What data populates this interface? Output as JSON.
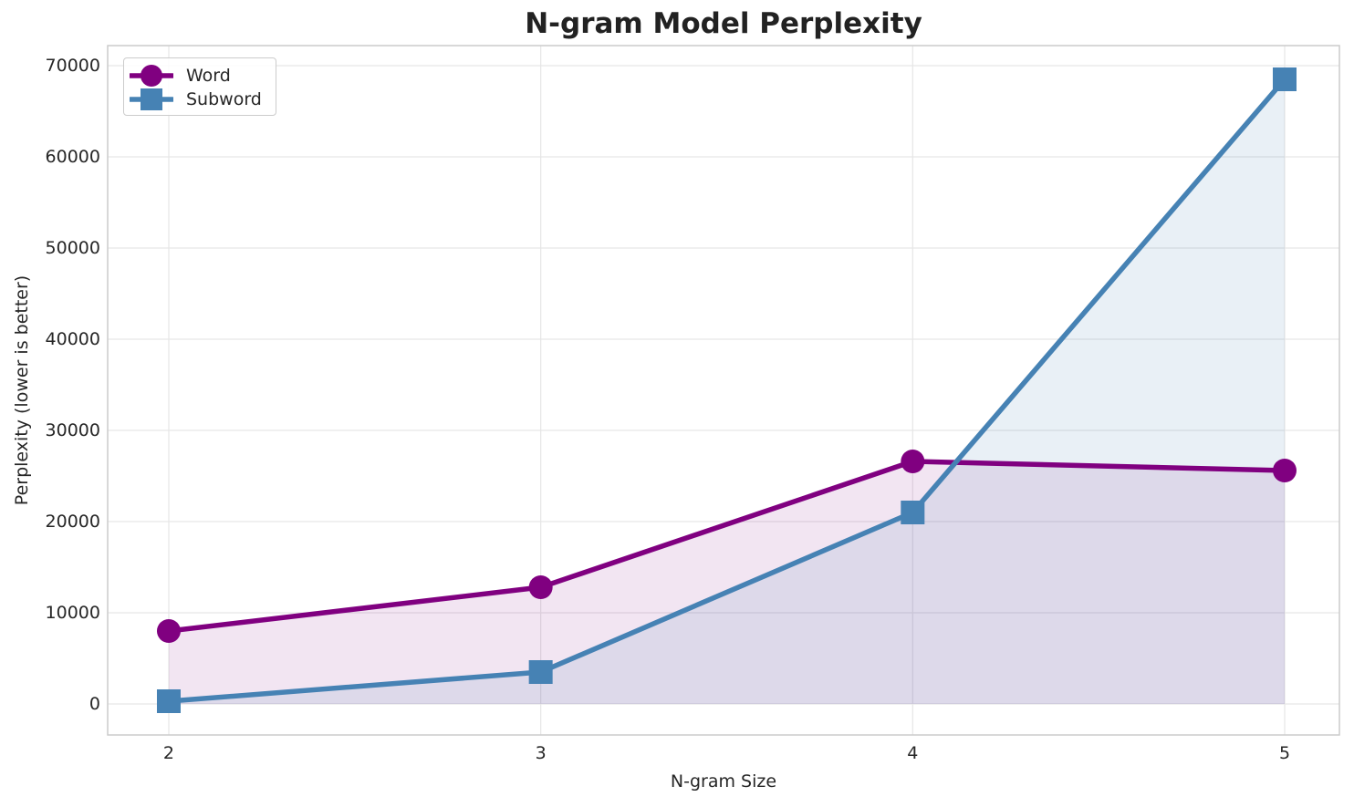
{
  "chart_data": {
    "type": "line",
    "title": "N-gram Model Perplexity",
    "xlabel": "N-gram Size",
    "ylabel": "Perplexity (lower is better)",
    "x": [
      2,
      3,
      4,
      5
    ],
    "xtick_labels": [
      "2",
      "3",
      "4",
      "5"
    ],
    "yticks": [
      0,
      10000,
      20000,
      30000,
      40000,
      50000,
      60000,
      70000
    ],
    "xlim": [
      1.8357,
      5.1472
    ],
    "ylim": [
      -3400,
      72200
    ],
    "grid": true,
    "legend_position": "upper left",
    "series": [
      {
        "name": "Word",
        "values": [
          8000,
          12800,
          26600,
          25600
        ],
        "color": "#800080",
        "marker": "circle",
        "fill_alpha": 0.1
      },
      {
        "name": "Subword",
        "values": [
          300,
          3500,
          21000,
          68500
        ],
        "color": "#4682B4",
        "marker": "square",
        "fill_alpha": 0.12
      }
    ],
    "style": {
      "grid_color": "#e6e6e6",
      "spine_color": "#cccccc",
      "text_color": "#262626",
      "background": "#ffffff"
    }
  }
}
